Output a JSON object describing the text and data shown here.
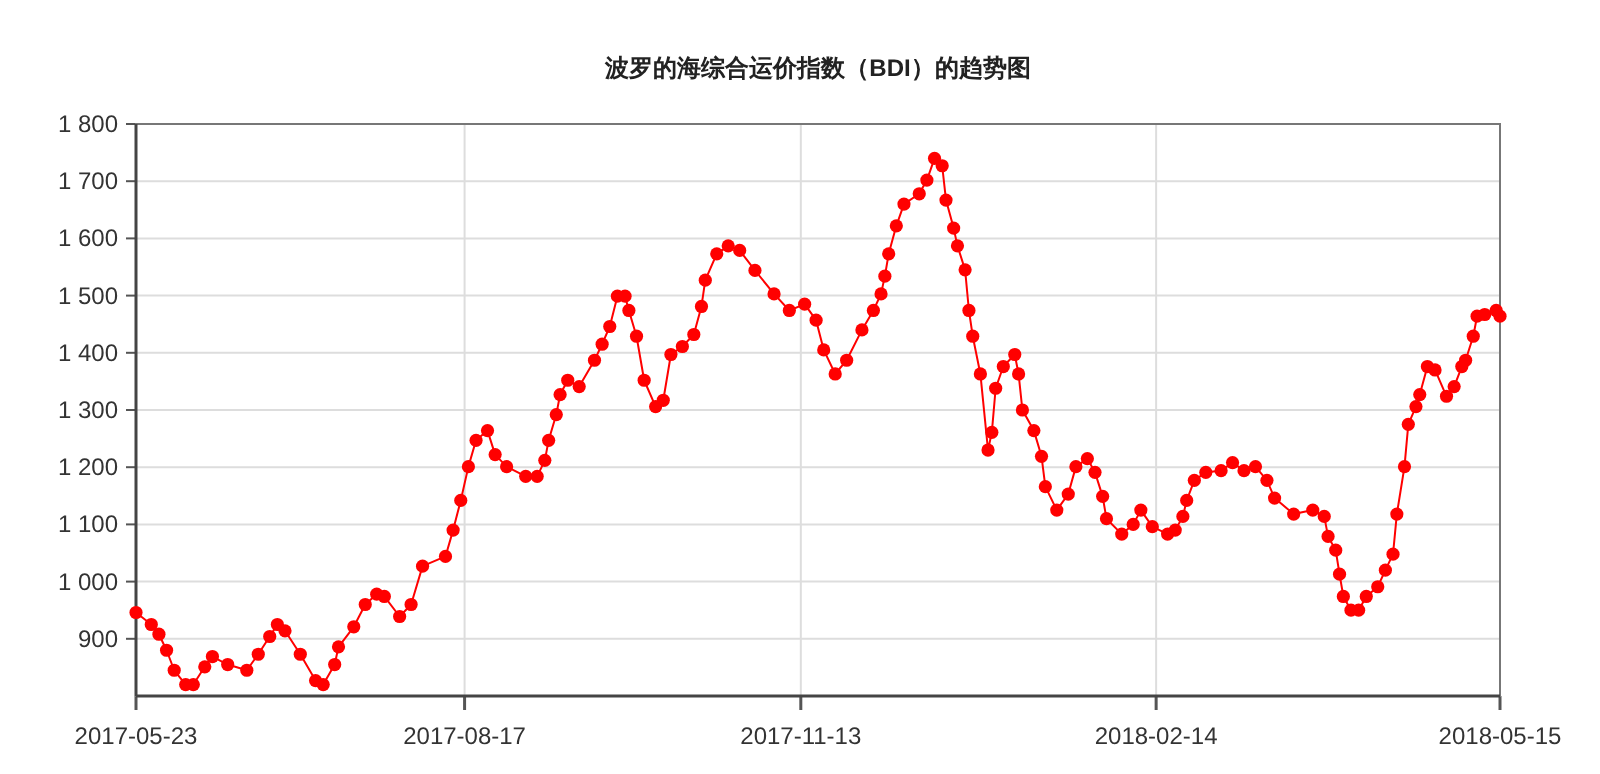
{
  "chart_data": {
    "type": "line",
    "title": "波罗的海综合运价指数（BDI）的趋势图",
    "x": [
      "2017-05-23",
      "2017-05-27",
      "2017-05-29",
      "2017-05-31",
      "2017-06-02",
      "2017-06-05",
      "2017-06-07",
      "2017-06-10",
      "2017-06-12",
      "2017-06-16",
      "2017-06-21",
      "2017-06-24",
      "2017-06-27",
      "2017-06-29",
      "2017-07-01",
      "2017-07-05",
      "2017-07-09",
      "2017-07-11",
      "2017-07-14",
      "2017-07-15",
      "2017-07-19",
      "2017-07-22",
      "2017-07-25",
      "2017-07-27",
      "2017-07-31",
      "2017-08-03",
      "2017-08-06",
      "2017-08-12",
      "2017-08-14",
      "2017-08-16",
      "2017-08-18",
      "2017-08-20",
      "2017-08-23",
      "2017-08-25",
      "2017-08-28",
      "2017-09-02",
      "2017-09-05",
      "2017-09-07",
      "2017-09-08",
      "2017-09-10",
      "2017-09-11",
      "2017-09-13",
      "2017-09-16",
      "2017-09-20",
      "2017-09-22",
      "2017-09-24",
      "2017-09-26",
      "2017-09-28",
      "2017-09-29",
      "2017-10-01",
      "2017-10-03",
      "2017-10-06",
      "2017-10-08",
      "2017-10-10",
      "2017-10-13",
      "2017-10-16",
      "2017-10-18",
      "2017-10-19",
      "2017-10-22",
      "2017-10-25",
      "2017-10-28",
      "2017-11-01",
      "2017-11-06",
      "2017-11-10",
      "2017-11-14",
      "2017-11-17",
      "2017-11-19",
      "2017-11-22",
      "2017-11-25",
      "2017-11-29",
      "2017-12-02",
      "2017-12-04",
      "2017-12-05",
      "2017-12-06",
      "2017-12-08",
      "2017-12-10",
      "2017-12-14",
      "2017-12-16",
      "2017-12-18",
      "2017-12-20",
      "2017-12-21",
      "2017-12-23",
      "2017-12-24",
      "2017-12-26",
      "2017-12-27",
      "2017-12-28",
      "2017-12-30",
      "2018-01-01",
      "2018-01-02",
      "2018-01-03",
      "2018-01-05",
      "2018-01-08",
      "2018-01-09",
      "2018-01-10",
      "2018-01-13",
      "2018-01-15",
      "2018-01-16",
      "2018-01-19",
      "2018-01-22",
      "2018-01-24",
      "2018-01-27",
      "2018-01-29",
      "2018-01-31",
      "2018-02-01",
      "2018-02-05",
      "2018-02-08",
      "2018-02-10",
      "2018-02-13",
      "2018-02-17",
      "2018-02-19",
      "2018-02-21",
      "2018-02-22",
      "2018-02-24",
      "2018-02-27",
      "2018-03-03",
      "2018-03-06",
      "2018-03-09",
      "2018-03-12",
      "2018-03-15",
      "2018-03-17",
      "2018-03-22",
      "2018-03-27",
      "2018-03-30",
      "2018-03-31",
      "2018-04-02",
      "2018-04-03",
      "2018-04-04",
      "2018-04-06",
      "2018-04-08",
      "2018-04-10",
      "2018-04-13",
      "2018-04-15",
      "2018-04-17",
      "2018-04-18",
      "2018-04-20",
      "2018-04-21",
      "2018-04-23",
      "2018-04-24",
      "2018-04-26",
      "2018-04-28",
      "2018-05-01",
      "2018-05-03",
      "2018-05-05",
      "2018-05-06",
      "2018-05-08",
      "2018-05-09",
      "2018-05-11",
      "2018-05-14",
      "2018-05-15"
    ],
    "series": [
      {
        "color": "#ff0000",
        "values": [
          946,
          925,
          908,
          880,
          845,
          820,
          820,
          851,
          869,
          855,
          845,
          873,
          904,
          925,
          914,
          873,
          827,
          820,
          855,
          886,
          921,
          960,
          978,
          974,
          939,
          960,
          1027,
          1044,
          1090,
          1142,
          1201,
          1247,
          1264,
          1222,
          1201,
          1184,
          1184,
          1212,
          1247,
          1292,
          1327,
          1352,
          1341,
          1387,
          1415,
          1446,
          1499,
          1499,
          1474,
          1429,
          1352,
          1306,
          1317,
          1397,
          1411,
          1432,
          1481,
          1527,
          1573,
          1587,
          1579,
          1544,
          1503,
          1474,
          1485,
          1457,
          1405,
          1363,
          1387,
          1440,
          1474,
          1503,
          1534,
          1573,
          1622,
          1660,
          1678,
          1702,
          1740,
          1727,
          1667,
          1618,
          1587,
          1545,
          1474,
          1429,
          1363,
          1230,
          1261,
          1338,
          1376,
          1397,
          1363,
          1300,
          1264,
          1219,
          1166,
          1125,
          1153,
          1201,
          1215,
          1191,
          1149,
          1110,
          1083,
          1100,
          1125,
          1096,
          1083,
          1090,
          1114,
          1142,
          1177,
          1191,
          1194,
          1208,
          1194,
          1201,
          1177,
          1146,
          1118,
          1125,
          1114,
          1079,
          1055,
          1013,
          974,
          950,
          950,
          974,
          991,
          1020,
          1048,
          1118,
          1201,
          1275,
          1306,
          1327,
          1376,
          1370,
          1324,
          1341,
          1376,
          1387,
          1429,
          1464,
          1467,
          1474,
          1464
        ]
      }
    ],
    "xlim": [
      "2017-05-23",
      "2018-05-15"
    ],
    "xticks": [
      "2017-05-23",
      "2017-08-17",
      "2017-11-13",
      "2018-02-14",
      "2018-05-15"
    ],
    "ylim": [
      800,
      1800
    ],
    "yticks": [
      {
        "value": 900,
        "label": "900"
      },
      {
        "value": 1000,
        "label": "1 000"
      },
      {
        "value": 1100,
        "label": "1 100"
      },
      {
        "value": 1200,
        "label": "1 200"
      },
      {
        "value": 1300,
        "label": "1 300"
      },
      {
        "value": 1400,
        "label": "1 400"
      },
      {
        "value": 1500,
        "label": "1 500"
      },
      {
        "value": 1600,
        "label": "1 600"
      },
      {
        "value": 1700,
        "label": "1 700"
      },
      {
        "value": 1800,
        "label": "1 800"
      }
    ],
    "grid": true,
    "marker": "circle"
  }
}
